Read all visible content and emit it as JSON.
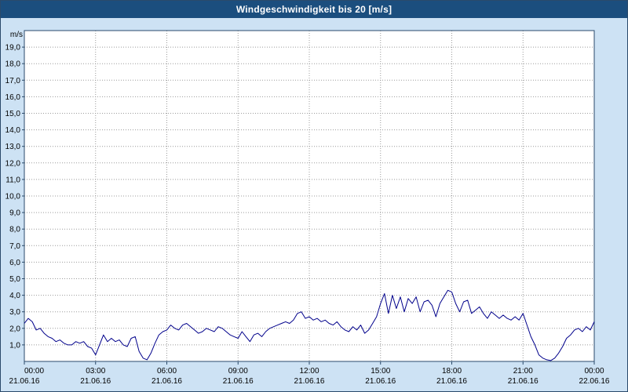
{
  "window": {
    "title": "Windgeschwindigkeit bis 20 [m/s]"
  },
  "colors": {
    "header_bg": "#1b4e7e",
    "page_bg": "#cde2f4",
    "plot_bg": "#ffffff",
    "grid": "#9b9b9b",
    "frame": "#2a4a6b",
    "line": "#00008b",
    "text": "#000000",
    "title_text": "#ffffff"
  },
  "chart_data": {
    "type": "line",
    "title": "Windgeschwindigkeit bis 20 [m/s]",
    "xlabel": "",
    "ylabel": "m/s",
    "ylim": [
      0,
      20
    ],
    "xlim_hours": [
      0,
      24
    ],
    "grid": true,
    "legend_position": "none",
    "yticks": [
      {
        "value": 19,
        "label": "19,0"
      },
      {
        "value": 18,
        "label": "18,0"
      },
      {
        "value": 17,
        "label": "17,0"
      },
      {
        "value": 16,
        "label": "16,0"
      },
      {
        "value": 15,
        "label": "15,0"
      },
      {
        "value": 14,
        "label": "14,0"
      },
      {
        "value": 13,
        "label": "13,0"
      },
      {
        "value": 12,
        "label": "12,0"
      },
      {
        "value": 11,
        "label": "11,0"
      },
      {
        "value": 10,
        "label": "10,0"
      },
      {
        "value": 9,
        "label": "9,0"
      },
      {
        "value": 8,
        "label": "8,0"
      },
      {
        "value": 7,
        "label": "7,0"
      },
      {
        "value": 6,
        "label": "6,0"
      },
      {
        "value": 5,
        "label": "5,0"
      },
      {
        "value": 4,
        "label": "4,0"
      },
      {
        "value": 3,
        "label": "3,0"
      },
      {
        "value": 2,
        "label": "2,0"
      },
      {
        "value": 1,
        "label": "1,0"
      }
    ],
    "x_ticks": [
      {
        "hour": 0,
        "time": "00:00",
        "date": "21.06.16"
      },
      {
        "hour": 3,
        "time": "03:00",
        "date": "21.06.16"
      },
      {
        "hour": 6,
        "time": "06:00",
        "date": "21.06.16"
      },
      {
        "hour": 9,
        "time": "09:00",
        "date": "21.06.16"
      },
      {
        "hour": 12,
        "time": "12:00",
        "date": "21.06.16"
      },
      {
        "hour": 15,
        "time": "15:00",
        "date": "21.06.16"
      },
      {
        "hour": 18,
        "time": "18:00",
        "date": "21.06.16"
      },
      {
        "hour": 21,
        "time": "21:00",
        "date": "21.06.16"
      },
      {
        "hour": 24,
        "time": "00:00",
        "date": "22.06.16"
      }
    ],
    "series": [
      {
        "name": "Windgeschwindigkeit",
        "unit": "m/s",
        "interval_minutes": 10,
        "values": [
          2.3,
          2.6,
          2.4,
          1.9,
          2.0,
          1.7,
          1.5,
          1.4,
          1.2,
          1.3,
          1.1,
          1.0,
          1.0,
          1.2,
          1.1,
          1.2,
          0.9,
          0.8,
          0.4,
          1.0,
          1.6,
          1.2,
          1.4,
          1.2,
          1.3,
          1.0,
          0.9,
          1.4,
          1.5,
          0.6,
          0.2,
          0.1,
          0.5,
          1.1,
          1.6,
          1.8,
          1.9,
          2.2,
          2.0,
          1.9,
          2.2,
          2.3,
          2.1,
          1.9,
          1.7,
          1.8,
          2.0,
          1.9,
          1.8,
          2.1,
          2.0,
          1.8,
          1.6,
          1.5,
          1.4,
          1.8,
          1.5,
          1.2,
          1.6,
          1.7,
          1.5,
          1.8,
          2.0,
          2.1,
          2.2,
          2.3,
          2.4,
          2.3,
          2.5,
          2.9,
          3.0,
          2.6,
          2.7,
          2.5,
          2.6,
          2.4,
          2.5,
          2.3,
          2.2,
          2.4,
          2.1,
          1.9,
          1.8,
          2.1,
          1.9,
          2.2,
          1.7,
          1.9,
          2.3,
          2.7,
          3.5,
          4.1,
          2.9,
          4.0,
          3.2,
          3.9,
          3.0,
          3.8,
          3.5,
          3.9,
          3.0,
          3.6,
          3.7,
          3.4,
          2.7,
          3.5,
          3.9,
          4.3,
          4.2,
          3.5,
          3.0,
          3.6,
          3.7,
          2.9,
          3.1,
          3.3,
          2.9,
          2.6,
          3.0,
          2.8,
          2.6,
          2.8,
          2.6,
          2.5,
          2.7,
          2.5,
          2.9,
          2.2,
          1.5,
          1.0,
          0.4,
          0.2,
          0.1,
          0.05,
          0.2,
          0.5,
          0.9,
          1.4,
          1.6,
          1.9,
          2.0,
          1.8,
          2.1,
          1.9,
          2.4
        ]
      }
    ]
  }
}
